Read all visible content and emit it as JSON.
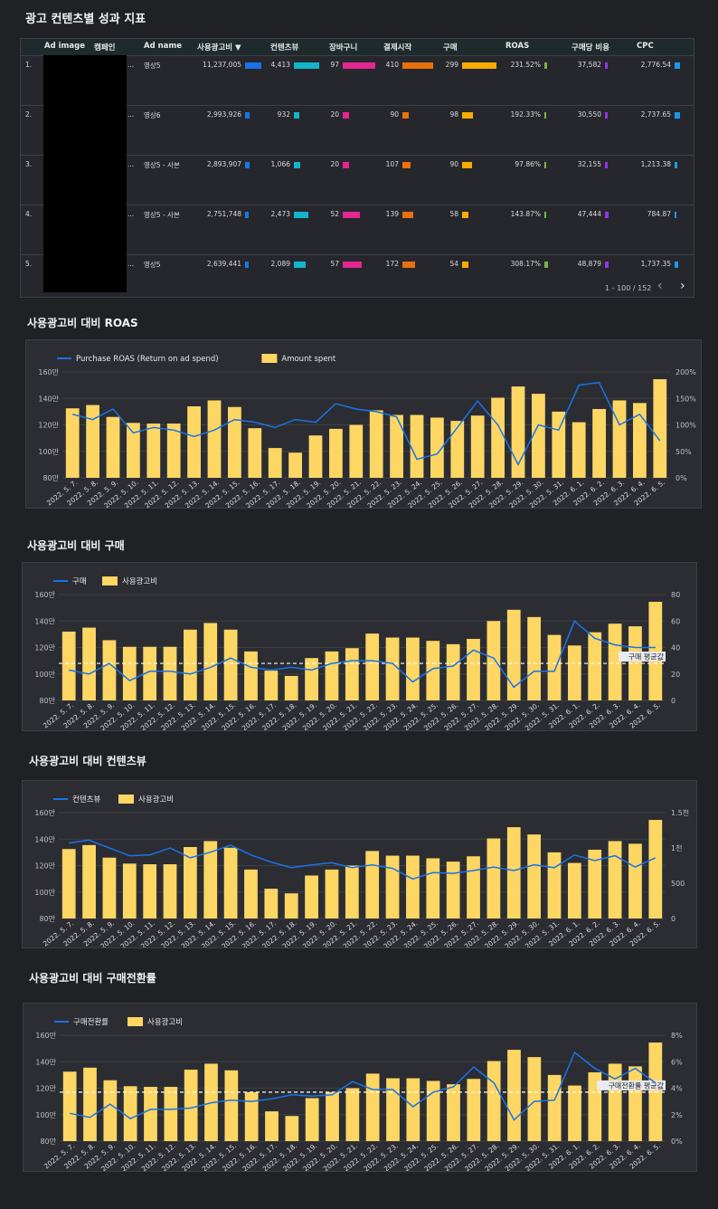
{
  "table": {
    "title": "광고 컨텐츠별 성과 지표",
    "headers": [
      "Ad image",
      "캠페인",
      "Ad name",
      "사용광고비 ▼",
      "컨텐츠뷰",
      "장바구니",
      "결제시작",
      "구매",
      "ROAS",
      "구매당 비용",
      "CPC"
    ],
    "rows": [
      {
        "idx": "1.",
        "campaign": "...",
        "ad_name": "영상5",
        "spend": "11,237,005",
        "spend_v": 11237005,
        "view": "4,413",
        "view_v": 4413,
        "cart": "97",
        "cart_v": 97,
        "checkout": "410",
        "checkout_v": 410,
        "purchase": "299",
        "purchase_v": 299,
        "roas": "231.52%",
        "roas_v": 231.52,
        "cpp": "37,582",
        "cpp_v": 37582,
        "cpc": "2,776.54",
        "cpc_v": 2776.54
      },
      {
        "idx": "2.",
        "campaign": "...",
        "ad_name": "영상6",
        "spend": "2,993,926",
        "spend_v": 2993926,
        "view": "932",
        "view_v": 932,
        "cart": "20",
        "cart_v": 20,
        "checkout": "90",
        "checkout_v": 90,
        "purchase": "98",
        "purchase_v": 98,
        "roas": "192.33%",
        "roas_v": 192.33,
        "cpp": "30,550",
        "cpp_v": 30550,
        "cpc": "2,737.65",
        "cpc_v": 2737.65
      },
      {
        "idx": "3.",
        "campaign": "...",
        "ad_name": "영상5 - 사본",
        "spend": "2,893,907",
        "spend_v": 2893907,
        "view": "1,066",
        "view_v": 1066,
        "cart": "20",
        "cart_v": 20,
        "checkout": "107",
        "checkout_v": 107,
        "purchase": "90",
        "purchase_v": 90,
        "roas": "97.86%",
        "roas_v": 97.86,
        "cpp": "32,155",
        "cpp_v": 32155,
        "cpc": "1,213.38",
        "cpc_v": 1213.38
      },
      {
        "idx": "4.",
        "campaign": "...",
        "ad_name": "영상5 - 사본",
        "spend": "2,751,748",
        "spend_v": 2751748,
        "view": "2,473",
        "view_v": 2473,
        "cart": "52",
        "cart_v": 52,
        "checkout": "139",
        "checkout_v": 139,
        "purchase": "58",
        "purchase_v": 58,
        "roas": "143.87%",
        "roas_v": 143.87,
        "cpp": "47,444",
        "cpp_v": 47444,
        "cpc": "784.87",
        "cpc_v": 784.87
      },
      {
        "idx": "5.",
        "campaign": "...",
        "ad_name": "영상5",
        "spend": "2,639,441",
        "spend_v": 2639441,
        "view": "2,089",
        "view_v": 2089,
        "cart": "57",
        "cart_v": 57,
        "checkout": "172",
        "checkout_v": 172,
        "purchase": "54",
        "purchase_v": 54,
        "roas": "308.17%",
        "roas_v": 308.17,
        "cpp": "48,879",
        "cpp_v": 48879,
        "cpc": "1,737.35",
        "cpc_v": 1737.35
      }
    ],
    "bar_colors": {
      "spend": "#1a73e8",
      "view": "#12b5cb",
      "cart": "#e52592",
      "checkout": "#e8710a",
      "purchase": "#f9ab00",
      "roas": "#7cb342",
      "cpp": "#9334e6",
      "cpc": "#1a9ae8"
    },
    "pager_text": "1 - 100 / 152",
    "prev_icon": "‹",
    "next_icon": "›"
  },
  "chart_data": [
    {
      "type": "bar",
      "title": "사용광고비 대비 ROAS",
      "categories": [
        "2022. 5. 7.",
        "2022. 5. 8.",
        "2022. 5. 9.",
        "2022. 5. 10.",
        "2022. 5. 11.",
        "2022. 5. 12.",
        "2022. 5. 13.",
        "2022. 5. 14.",
        "2022. 5. 15.",
        "2022. 5. 16.",
        "2022. 5. 17.",
        "2022. 5. 18.",
        "2022. 5. 19.",
        "2022. 5. 20.",
        "2022. 5. 21.",
        "2022. 5. 22.",
        "2022. 5. 23.",
        "2022. 5. 24.",
        "2022. 5. 25.",
        "2022. 5. 26.",
        "2022. 5. 27.",
        "2022. 5. 28.",
        "2022. 5. 29.",
        "2022. 5. 30.",
        "2022. 5. 31.",
        "2022. 6. 1.",
        "2022. 6. 2.",
        "2022. 6. 3.",
        "2022. 6. 4.",
        "2022. 6. 5."
      ],
      "series": [
        {
          "name": "Amount spent",
          "kind": "bar",
          "axis": "left",
          "color": "#fdd663",
          "values": [
            1325000,
            1350000,
            1260000,
            1215000,
            1210000,
            1210000,
            1340000,
            1385000,
            1335000,
            1175000,
            1025000,
            990000,
            1120000,
            1170000,
            1200000,
            1310000,
            1275000,
            1275000,
            1255000,
            1230000,
            1270000,
            1405000,
            1490000,
            1435000,
            1300000,
            1220000,
            1320000,
            1385000,
            1365000,
            1545000
          ]
        },
        {
          "name": "Purchase ROAS (Return on ad spend)",
          "kind": "line",
          "axis": "right",
          "color": "#1a73e8",
          "values": [
            120,
            110,
            130,
            85,
            95,
            90,
            78,
            90,
            110,
            105,
            95,
            110,
            105,
            140,
            130,
            125,
            115,
            35,
            45,
            95,
            145,
            100,
            25,
            100,
            90,
            175,
            180,
            100,
            120,
            70
          ]
        }
      ],
      "ylim_left": [
        800000,
        1600000
      ],
      "yticks_left": [
        "80만",
        "100만",
        "120만",
        "140만",
        "160만"
      ],
      "ylim_right": [
        0,
        200
      ],
      "yticks_right": [
        "0%",
        "50%",
        "100%",
        "150%",
        "200%"
      ],
      "legend": "top-left",
      "grid": true
    },
    {
      "type": "bar",
      "title": "사용광고비 대비 구매",
      "categories": [
        "2022. 5. 7.",
        "2022. 5. 8.",
        "2022. 5. 9.",
        "2022. 5. 10.",
        "2022. 5. 11.",
        "2022. 5. 12.",
        "2022. 5. 13.",
        "2022. 5. 14.",
        "2022. 5. 15.",
        "2022. 5. 16.",
        "2022. 5. 17.",
        "2022. 5. 18.",
        "2022. 5. 19.",
        "2022. 5. 20.",
        "2022. 5. 21.",
        "2022. 5. 22.",
        "2022. 5. 23.",
        "2022. 5. 24.",
        "2022. 5. 25.",
        "2022. 5. 26.",
        "2022. 5. 27.",
        "2022. 5. 28.",
        "2022. 5. 29.",
        "2022. 5. 30.",
        "2022. 5. 31.",
        "2022. 6. 1.",
        "2022. 6. 2.",
        "2022. 6. 3.",
        "2022. 6. 4.",
        "2022. 6. 5."
      ],
      "series": [
        {
          "name": "사용광고비",
          "kind": "bar",
          "axis": "left",
          "color": "#fdd663",
          "values": [
            1320000,
            1350000,
            1255000,
            1205000,
            1205000,
            1205000,
            1335000,
            1385000,
            1335000,
            1170000,
            1025000,
            985000,
            1120000,
            1170000,
            1195000,
            1305000,
            1275000,
            1275000,
            1250000,
            1225000,
            1265000,
            1400000,
            1485000,
            1430000,
            1295000,
            1215000,
            1315000,
            1380000,
            1360000,
            1545000
          ]
        },
        {
          "name": "구매",
          "kind": "line",
          "axis": "right",
          "color": "#1a73e8",
          "values": [
            23,
            20,
            28,
            15,
            22,
            22,
            20,
            25,
            32,
            25,
            23,
            25,
            23,
            28,
            30,
            30,
            28,
            14,
            24,
            26,
            38,
            32,
            10,
            22,
            22,
            60,
            47,
            42,
            40,
            40
          ]
        }
      ],
      "reference_line": {
        "label": "구매 평균값",
        "value": 28
      },
      "ylim_left": [
        800000,
        1600000
      ],
      "yticks_left": [
        "80만",
        "100만",
        "120만",
        "140만",
        "160만"
      ],
      "ylim_right": [
        0,
        80
      ],
      "yticks_right": [
        "0",
        "20",
        "40",
        "60",
        "80"
      ],
      "legend": "top-left",
      "grid": true
    },
    {
      "type": "bar",
      "title": "사용광고비 대비 컨텐츠뷰",
      "categories": [
        "2022. 5. 7.",
        "2022. 5. 8.",
        "2022. 5. 9.",
        "2022. 5. 10.",
        "2022. 5. 11.",
        "2022. 5. 12.",
        "2022. 5. 13.",
        "2022. 5. 14.",
        "2022. 5. 15.",
        "2022. 5. 16.",
        "2022. 5. 17.",
        "2022. 5. 18.",
        "2022. 5. 19.",
        "2022. 5. 20.",
        "2022. 5. 21.",
        "2022. 5. 22.",
        "2022. 5. 23.",
        "2022. 5. 24.",
        "2022. 5. 25.",
        "2022. 5. 26.",
        "2022. 5. 27.",
        "2022. 5. 28.",
        "2022. 5. 29.",
        "2022. 5. 30.",
        "2022. 5. 31.",
        "2022. 6. 1.",
        "2022. 6. 2.",
        "2022. 6. 3.",
        "2022. 6. 4.",
        "2022. 6. 5."
      ],
      "series": [
        {
          "name": "사용광고비",
          "kind": "bar",
          "axis": "left",
          "color": "#fdd663",
          "values": [
            1325000,
            1355000,
            1260000,
            1215000,
            1210000,
            1210000,
            1340000,
            1385000,
            1335000,
            1170000,
            1025000,
            990000,
            1125000,
            1170000,
            1200000,
            1310000,
            1275000,
            1275000,
            1255000,
            1230000,
            1270000,
            1405000,
            1490000,
            1435000,
            1300000,
            1220000,
            1320000,
            1385000,
            1365000,
            1545000
          ]
        },
        {
          "name": "컨텐츠뷰",
          "kind": "line",
          "axis": "right",
          "color": "#1a73e8",
          "values": [
            1070,
            1110,
            1000,
            890,
            900,
            1000,
            860,
            940,
            1040,
            900,
            800,
            720,
            760,
            790,
            720,
            760,
            710,
            560,
            650,
            640,
            680,
            730,
            680,
            760,
            720,
            900,
            820,
            890,
            730,
            860
          ]
        }
      ],
      "ylim_left": [
        800000,
        1600000
      ],
      "yticks_left": [
        "80만",
        "100만",
        "120만",
        "140만",
        "160만"
      ],
      "ylim_right": [
        0,
        1500
      ],
      "yticks_right": [
        "0",
        "500",
        "1천",
        "1.5천"
      ],
      "legend": "top-left",
      "grid": true
    },
    {
      "type": "bar",
      "title": "사용광고비 대비 구매전환률",
      "categories": [
        "2022. 5. 7.",
        "2022. 5. 8.",
        "2022. 5. 9.",
        "2022. 5. 10.",
        "2022. 5. 11.",
        "2022. 5. 12.",
        "2022. 5. 13.",
        "2022. 5. 14.",
        "2022. 5. 15.",
        "2022. 5. 16.",
        "2022. 5. 17.",
        "2022. 5. 18.",
        "2022. 5. 19.",
        "2022. 5. 20.",
        "2022. 5. 21.",
        "2022. 5. 22.",
        "2022. 5. 23.",
        "2022. 5. 24.",
        "2022. 5. 25.",
        "2022. 5. 26.",
        "2022. 5. 27.",
        "2022. 5. 28.",
        "2022. 5. 29.",
        "2022. 5. 30.",
        "2022. 5. 31.",
        "2022. 6. 1.",
        "2022. 6. 2.",
        "2022. 6. 3.",
        "2022. 6. 4.",
        "2022. 6. 5."
      ],
      "series": [
        {
          "name": "사용광고비",
          "kind": "bar",
          "axis": "left",
          "color": "#fdd663",
          "values": [
            1325000,
            1355000,
            1260000,
            1215000,
            1210000,
            1210000,
            1340000,
            1385000,
            1335000,
            1170000,
            1025000,
            990000,
            1125000,
            1170000,
            1200000,
            1310000,
            1275000,
            1275000,
            1255000,
            1230000,
            1270000,
            1405000,
            1490000,
            1435000,
            1300000,
            1220000,
            1320000,
            1385000,
            1365000,
            1545000
          ]
        },
        {
          "name": "구매전환률",
          "kind": "line",
          "axis": "right",
          "color": "#1a73e8",
          "values": [
            2.1,
            1.8,
            2.8,
            1.7,
            2.4,
            2.4,
            2.5,
            2.9,
            3.1,
            3.0,
            3.2,
            3.5,
            3.4,
            3.5,
            4.5,
            3.9,
            3.9,
            2.6,
            3.7,
            4.1,
            5.6,
            4.4,
            1.6,
            3.0,
            3.1,
            6.7,
            5.5,
            4.7,
            5.5,
            4.4
          ]
        }
      ],
      "reference_line": {
        "label": "구매전환률 평균값",
        "value": 3.7
      },
      "ylim_left": [
        800000,
        1600000
      ],
      "yticks_left": [
        "80만",
        "100만",
        "120만",
        "140만",
        "160만"
      ],
      "ylim_right": [
        0,
        8
      ],
      "yticks_right": [
        "0%",
        "2%",
        "4%",
        "6%",
        "8%"
      ],
      "legend": "top-left",
      "grid": true
    }
  ]
}
